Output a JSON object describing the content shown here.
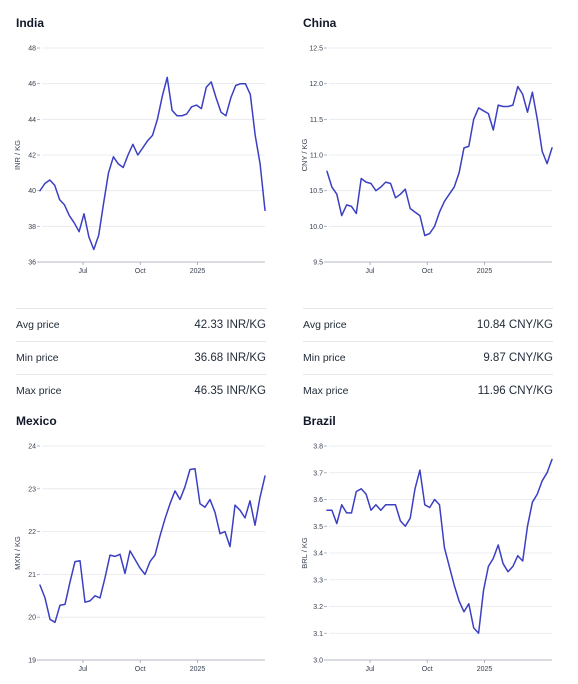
{
  "colors": {
    "line": "#3b3fc2",
    "grid": "#e5e7eb",
    "axis": "#9ca3af",
    "text": "#374151"
  },
  "chart_data": [
    {
      "type": "line",
      "title": "India",
      "ylabel": "INR / KG",
      "ylim": [
        36,
        48
      ],
      "yticks": [
        36,
        38,
        40,
        42,
        44,
        46,
        48
      ],
      "xlim": [
        0,
        55
      ],
      "xticks": [
        {
          "x": 10.5,
          "label": "Jul"
        },
        {
          "x": 24.5,
          "label": "Oct"
        },
        {
          "x": 38.5,
          "label": "2025"
        }
      ],
      "grid": true,
      "series": [
        {
          "values": [
            40.0,
            40.4,
            40.6,
            40.3,
            39.5,
            39.2,
            38.6,
            38.2,
            37.7,
            38.7,
            37.4,
            36.7,
            37.5,
            39.3,
            41.0,
            41.9,
            41.5,
            41.3,
            42.0,
            42.6,
            42.0,
            42.4,
            42.8,
            43.1,
            44.0,
            45.3,
            46.35,
            44.5,
            44.2,
            44.2,
            44.3,
            44.7,
            44.8,
            44.6,
            45.8,
            46.1,
            45.2,
            44.4,
            44.2,
            45.2,
            45.9,
            46.0,
            46.0,
            45.4,
            43.1,
            41.5,
            38.9
          ]
        }
      ],
      "stats": [
        {
          "label": "Avg price",
          "value": "42.33 INR/KG"
        },
        {
          "label": "Min price",
          "value": "36.68 INR/KG"
        },
        {
          "label": "Max price",
          "value": "46.35 INR/KG"
        }
      ]
    },
    {
      "type": "line",
      "title": "China",
      "ylabel": "CNY / KG",
      "ylim": [
        9.5,
        12.5
      ],
      "yticks": [
        9.5,
        10.0,
        10.5,
        11.0,
        11.5,
        12.0,
        12.5
      ],
      "xlim": [
        0,
        55
      ],
      "xticks": [
        {
          "x": 10.5,
          "label": "Jul"
        },
        {
          "x": 24.5,
          "label": "Oct"
        },
        {
          "x": 38.5,
          "label": "2025"
        }
      ],
      "grid": true,
      "series": [
        {
          "values": [
            10.77,
            10.55,
            10.45,
            10.15,
            10.3,
            10.28,
            10.18,
            10.67,
            10.62,
            10.6,
            10.5,
            10.55,
            10.62,
            10.6,
            10.4,
            10.45,
            10.52,
            10.25,
            10.2,
            10.15,
            9.87,
            9.9,
            10.0,
            10.2,
            10.35,
            10.45,
            10.55,
            10.75,
            11.1,
            11.12,
            11.5,
            11.66,
            11.62,
            11.58,
            11.35,
            11.7,
            11.68,
            11.68,
            11.7,
            11.96,
            11.85,
            11.6,
            11.88,
            11.5,
            11.05,
            10.88,
            11.1
          ]
        }
      ],
      "stats": [
        {
          "label": "Avg price",
          "value": "10.84 CNY/KG"
        },
        {
          "label": "Min price",
          "value": "9.87 CNY/KG"
        },
        {
          "label": "Max price",
          "value": "11.96 CNY/KG"
        }
      ]
    },
    {
      "type": "line",
      "title": "Mexico",
      "ylabel": "MXN / KG",
      "ylim": [
        19,
        24
      ],
      "yticks": [
        19,
        20,
        21,
        22,
        23,
        24
      ],
      "xlim": [
        0,
        55
      ],
      "xticks": [
        {
          "x": 10.5,
          "label": "Jul"
        },
        {
          "x": 24.5,
          "label": "Oct"
        },
        {
          "x": 38.5,
          "label": "2025"
        }
      ],
      "grid": true,
      "series": [
        {
          "values": [
            20.75,
            20.45,
            19.95,
            19.88,
            20.28,
            20.3,
            20.82,
            21.3,
            21.32,
            20.35,
            20.38,
            20.5,
            20.45,
            20.92,
            21.45,
            21.42,
            21.47,
            21.02,
            21.55,
            21.35,
            21.15,
            21.0,
            21.3,
            21.45,
            21.9,
            22.3,
            22.65,
            22.95,
            22.75,
            23.05,
            23.45,
            23.47,
            22.65,
            22.57,
            22.75,
            22.45,
            21.95,
            22.0,
            21.65,
            22.62,
            22.5,
            22.32,
            22.72,
            22.15,
            22.8,
            23.3
          ]
        }
      ]
    },
    {
      "type": "line",
      "title": "Brazil",
      "ylabel": "BRL / KG",
      "ylim": [
        3.0,
        3.8
      ],
      "yticks": [
        3.0,
        3.1,
        3.2,
        3.3,
        3.4,
        3.5,
        3.6,
        3.7,
        3.8
      ],
      "xlim": [
        0,
        55
      ],
      "xticks": [
        {
          "x": 10.5,
          "label": "Jul"
        },
        {
          "x": 24.5,
          "label": "Oct"
        },
        {
          "x": 38.5,
          "label": "2025"
        }
      ],
      "grid": true,
      "series": [
        {
          "values": [
            3.56,
            3.56,
            3.51,
            3.58,
            3.55,
            3.55,
            3.63,
            3.64,
            3.62,
            3.56,
            3.58,
            3.56,
            3.58,
            3.58,
            3.58,
            3.52,
            3.5,
            3.53,
            3.64,
            3.71,
            3.58,
            3.57,
            3.6,
            3.58,
            3.42,
            3.35,
            3.28,
            3.22,
            3.18,
            3.21,
            3.12,
            3.1,
            3.26,
            3.35,
            3.38,
            3.43,
            3.36,
            3.33,
            3.35,
            3.39,
            3.37,
            3.5,
            3.59,
            3.62,
            3.67,
            3.7,
            3.75
          ]
        }
      ]
    }
  ]
}
